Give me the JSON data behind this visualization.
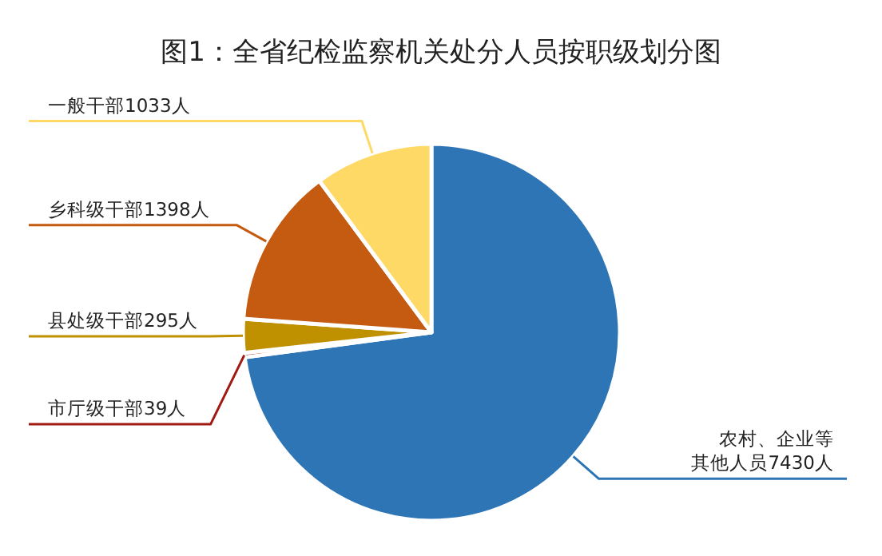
{
  "chart_data": {
    "type": "pie",
    "title": "图1：全省纪检监察机关处分人员按职级划分图",
    "categories": [
      null,
      null,
      null,
      null,
      null
    ],
    "values": [
      7430,
      39,
      295,
      1398,
      1033
    ],
    "colors": [
      "#2e75b6",
      "#a01a12",
      "#bf9000",
      "#c55a11",
      "#ffd966"
    ],
    "value_labels": [
      "农村、企业等其他人员7430人",
      "市厅级干部39人",
      "县处级干部295人",
      "乡科级干部1398人",
      "一般干部1033人"
    ]
  }
}
